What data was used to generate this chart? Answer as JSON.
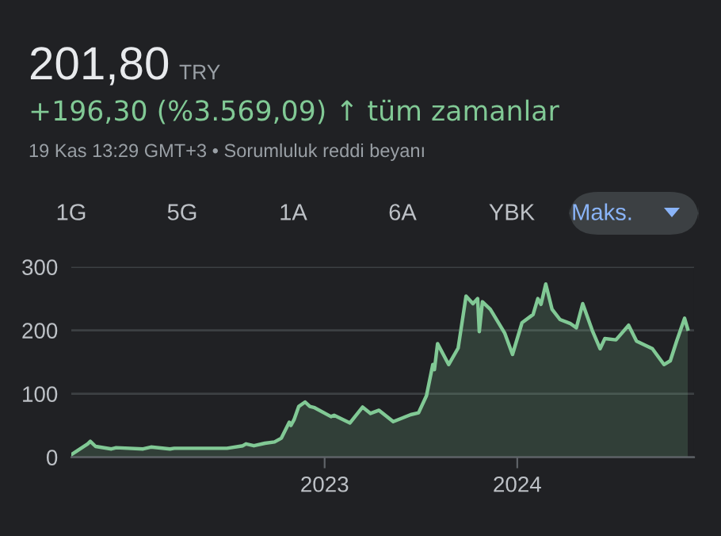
{
  "chart_data": {
    "type": "area",
    "title": "201,80",
    "annotations": [
      "TRY",
      "+196,30 (%3.569,09) ↑ tüm zamanlar",
      "19 Kas 13:29 GMT+3 • Sorumluluk reddi beyanı",
      "1G",
      "5G",
      "1A",
      "6A",
      "YBK",
      "Maks."
    ],
    "series": [
      {
        "color": "#81c995",
        "x": [
          "2021-09-08",
          "2021-10-09",
          "2021-10-14",
          "2021-10-24",
          "2021-11-23",
          "2021-12-02",
          "2022-01-22",
          "2022-02-06",
          "2022-03-14",
          "2022-03-22",
          "2022-06-30",
          "2022-07-30",
          "2022-08-05",
          "2022-08-20",
          "2022-09-10",
          "2022-09-28",
          "2022-10-11",
          "2022-10-26",
          "2022-10-29",
          "2022-11-04",
          "2022-11-13",
          "2022-11-25",
          "2022-12-04",
          "2022-12-13",
          "2023-01-13",
          "2023-01-19",
          "2023-02-18",
          "2023-03-14",
          "2023-03-29",
          "2023-04-14",
          "2023-05-11",
          "2023-05-29",
          "2023-06-13",
          "2023-06-28",
          "2023-07-13",
          "2023-07-25",
          "2023-07-28",
          "2023-08-03",
          "2023-08-24",
          "2023-09-11",
          "2023-09-26",
          "2023-10-09",
          "2023-10-18",
          "2023-10-21",
          "2023-10-27",
          "2023-11-11",
          "2023-12-08",
          "2023-12-23",
          "2024-01-10",
          "2024-01-31",
          "2024-02-09",
          "2024-02-15",
          "2024-02-24",
          "2024-03-07",
          "2024-03-22",
          "2024-04-10",
          "2024-04-22",
          "2024-05-04",
          "2024-05-22",
          "2024-06-06",
          "2024-06-15",
          "2024-07-06",
          "2024-07-30",
          "2024-08-14",
          "2024-09-13",
          "2024-10-05",
          "2024-10-17",
          "2024-10-29",
          "2024-11-13",
          "2024-11-19"
        ],
        "values": [
          4,
          21,
          25,
          17,
          13,
          15,
          13,
          16,
          13,
          14,
          14,
          18,
          21,
          18,
          22,
          24,
          30,
          55,
          50,
          59,
          80,
          87,
          80,
          78,
          64,
          66,
          54,
          79,
          69,
          74,
          56,
          62,
          67,
          70,
          97,
          146,
          138,
          179,
          146,
          172,
          254,
          242,
          250,
          198,
          245,
          233,
          196,
          162,
          212,
          225,
          250,
          241,
          273,
          233,
          217,
          211,
          204,
          242,
          200,
          171,
          187,
          185,
          208,
          183,
          171,
          146,
          152,
          183,
          219,
          202
        ]
      }
    ],
    "xlim": [
      "2021-09-08",
      "2024-12-01"
    ],
    "ylim": [
      0,
      300
    ],
    "xticks": [
      {
        "value": "2023-01-01",
        "label": "2023"
      },
      {
        "value": "2024-01-01",
        "label": "2024"
      }
    ],
    "yticks": [
      0,
      100,
      200,
      300
    ],
    "grid": "y",
    "legend": false
  }
}
